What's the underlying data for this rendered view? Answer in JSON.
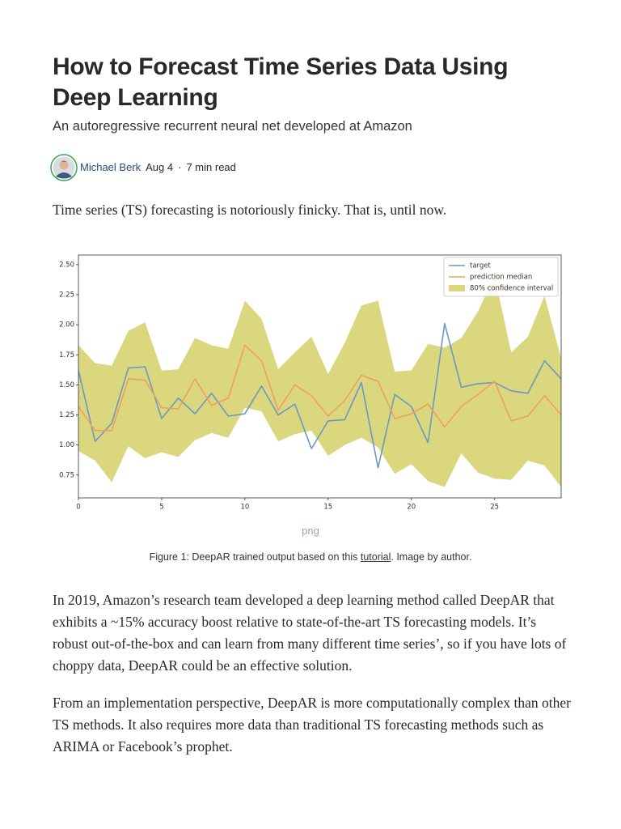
{
  "article": {
    "title": "How to Forecast Time Series Data Using Deep Learning",
    "subtitle": "An autoregressive recurrent neural net developed at Amazon",
    "author": "Michael Berk",
    "date": "Aug 4",
    "separator": "·",
    "read_time": "7 min read",
    "intro": "Time series (TS) forecasting is notoriously finicky. That is, until now.",
    "image_format": "png",
    "caption_before": "Figure 1: DeepAR trained output based on this ",
    "caption_link": "tutorial",
    "caption_after": ". Image by author.",
    "paragraphs": [
      "In 2019, Amazon’s research team developed a deep learning method called DeepAR that exhibits a ~15% accuracy boost relative to state-of-the-art TS forecasting models. It’s robust out-of-the-box and can learn from many different time series’, so if you have lots of choppy data, DeepAR could be an effective solution.",
      "From an implementation perspective, DeepAR is more computationally complex than other TS methods. It also requires more data than traditional TS forecasting methods such as ARIMA or Facebook’s prophet."
    ]
  },
  "chart_data": {
    "type": "line",
    "x": [
      0,
      1,
      2,
      3,
      4,
      5,
      6,
      7,
      8,
      9,
      10,
      11,
      12,
      13,
      14,
      15,
      16,
      17,
      18,
      19,
      20,
      21,
      22,
      23,
      24,
      25,
      26,
      27,
      28,
      29
    ],
    "xlim": [
      0,
      29
    ],
    "xticks": [
      0,
      5,
      10,
      15,
      20,
      25
    ],
    "ylim": [
      0.56,
      2.58
    ],
    "yticks": [
      0.75,
      {
        "value": 1,
        "label": "1.00"
      },
      1.25,
      {
        "value": 1.5,
        "label": "1.50"
      },
      1.75,
      {
        "value": 2,
        "label": "2.00"
      },
      2.25,
      {
        "value": 2.5,
        "label": "2.50"
      }
    ],
    "legend": "upper right",
    "series": [
      {
        "name": "target",
        "color": "#6b98c4",
        "values": [
          1.62,
          1.03,
          1.18,
          1.64,
          1.65,
          1.22,
          1.39,
          1.26,
          1.43,
          1.24,
          1.26,
          1.49,
          1.25,
          1.34,
          0.97,
          1.2,
          1.21,
          1.52,
          0.81,
          1.42,
          1.32,
          1.02,
          2.01,
          1.48,
          1.51,
          1.52,
          1.45,
          1.43,
          1.7,
          1.55
        ]
      },
      {
        "name": "prediction median",
        "color": "#f0a05a",
        "values": [
          1.32,
          1.12,
          1.12,
          1.55,
          1.54,
          1.31,
          1.3,
          1.55,
          1.33,
          1.39,
          1.83,
          1.7,
          1.29,
          1.5,
          1.41,
          1.24,
          1.37,
          1.58,
          1.53,
          1.22,
          1.26,
          1.34,
          1.15,
          1.32,
          1.42,
          1.53,
          1.2,
          1.24,
          1.41,
          1.25
        ]
      },
      {
        "name": "80% confidence interval",
        "color": "#dbd77f",
        "type": "band",
        "upper": [
          1.83,
          1.68,
          1.66,
          1.95,
          2.02,
          1.62,
          1.63,
          1.89,
          1.83,
          1.8,
          2.2,
          2.05,
          1.63,
          1.77,
          1.9,
          1.59,
          1.85,
          2.16,
          2.2,
          1.61,
          1.62,
          1.84,
          1.81,
          1.89,
          2.11,
          2.41,
          1.77,
          1.9,
          2.24,
          1.72
        ],
        "lower": [
          0.95,
          0.87,
          0.69,
          0.99,
          0.89,
          0.94,
          0.9,
          1.04,
          1.1,
          1.06,
          1.31,
          1.28,
          1.03,
          1.09,
          1.12,
          0.91,
          1.0,
          1.06,
          0.98,
          0.76,
          0.84,
          0.7,
          0.65,
          0.93,
          0.77,
          0.72,
          0.71,
          0.87,
          0.83,
          0.65
        ]
      }
    ]
  }
}
